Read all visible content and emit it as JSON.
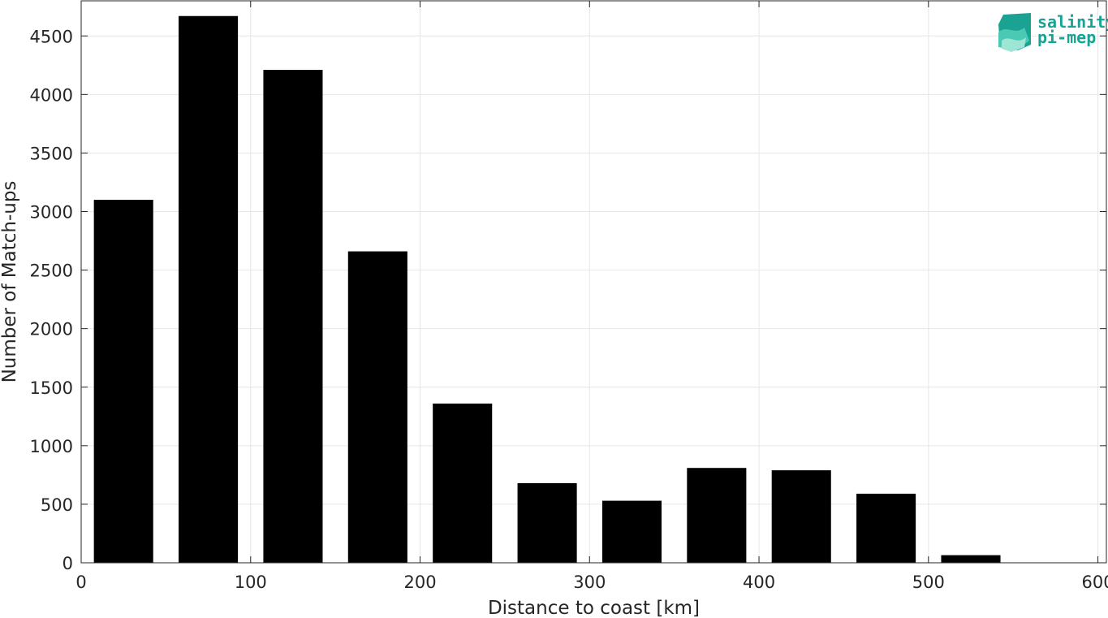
{
  "chart_data": {
    "type": "bar",
    "xlabel": "Distance to coast [km]",
    "ylabel": "Number of Match-ups",
    "xlim": [
      0,
      605
    ],
    "ylim": [
      0,
      4800
    ],
    "grid": true,
    "bin_width": 50,
    "bar_width": 35,
    "bins": [
      {
        "center": 25,
        "value": 3100
      },
      {
        "center": 75,
        "value": 4670
      },
      {
        "center": 125,
        "value": 4210
      },
      {
        "center": 175,
        "value": 2660
      },
      {
        "center": 225,
        "value": 1360
      },
      {
        "center": 275,
        "value": 680
      },
      {
        "center": 325,
        "value": 530
      },
      {
        "center": 375,
        "value": 810
      },
      {
        "center": 425,
        "value": 790
      },
      {
        "center": 475,
        "value": 590
      },
      {
        "center": 525,
        "value": 65
      },
      {
        "center": 575,
        "value": 0
      }
    ],
    "x_ticks": [
      0,
      100,
      200,
      300,
      400,
      500,
      600
    ],
    "y_ticks": [
      0,
      500,
      1000,
      1500,
      2000,
      2500,
      3000,
      3500,
      4000,
      4500
    ],
    "bar_color": "#000000",
    "grid_color": "#e6e6e6"
  },
  "logo": {
    "line1": "salinity",
    "line2": "pi-mep",
    "color": "#1aa392"
  }
}
